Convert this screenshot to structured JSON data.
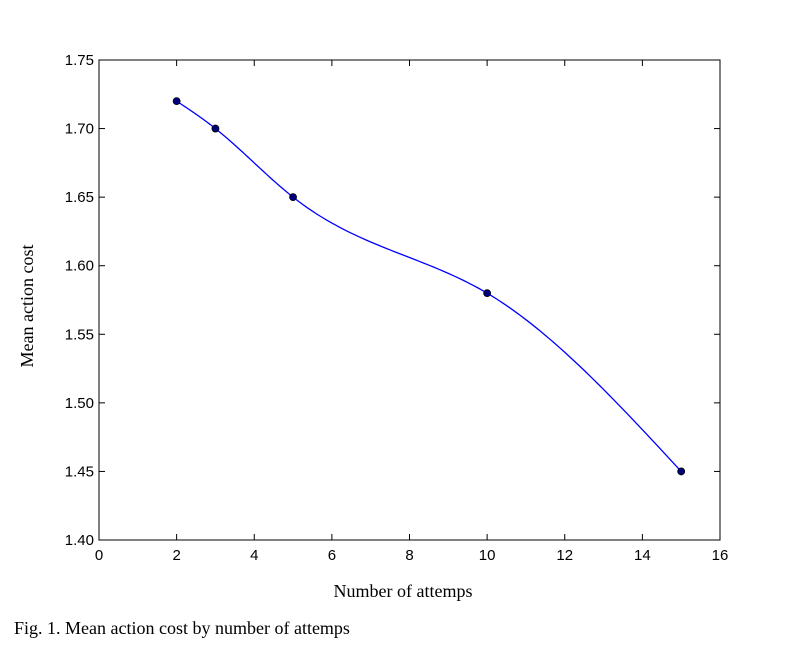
{
  "chart_data": {
    "type": "line",
    "xlabel": "Number of attemps",
    "ylabel": "Mean action cost",
    "xlim": [
      0,
      16
    ],
    "ylim": [
      1.4,
      1.75
    ],
    "x_ticks": [
      "0",
      "2",
      "4",
      "6",
      "8",
      "10",
      "12",
      "14",
      "16"
    ],
    "y_ticks": [
      "1.40",
      "1.45",
      "1.50",
      "1.55",
      "1.60",
      "1.65",
      "1.70",
      "1.75"
    ],
    "grid": false,
    "series": [
      {
        "x": [
          2,
          3,
          5,
          10,
          15
        ],
        "values": [
          1.72,
          1.7,
          1.65,
          1.58,
          1.45
        ],
        "color": "#0000ff",
        "marker_color": "#00007f",
        "smooth": true
      }
    ]
  },
  "caption": "Fig. 1. Mean action cost by number of attemps"
}
